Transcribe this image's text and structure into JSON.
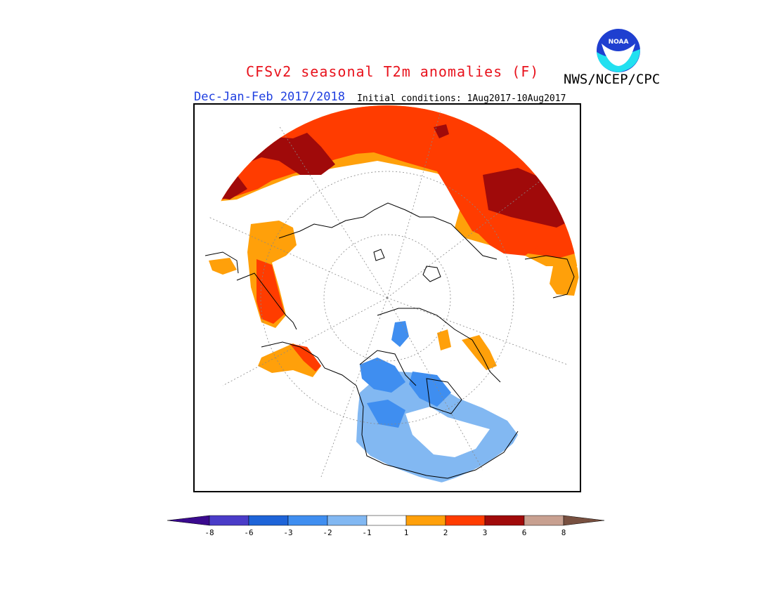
{
  "header": {
    "title": "CFSv2 seasonal T2m anomalies (F)",
    "agency": "NWS/NCEP/CPC",
    "logo_text": "NOAA",
    "season": "Dec-Jan-Feb 2017/2018",
    "initial_conditions": "Initial conditions: 1Aug2017-10Aug2017"
  },
  "map": {
    "projection": "north polar stereographic",
    "variable": "2m temperature anomaly",
    "units": "F"
  },
  "legend": {
    "bins": [
      {
        "range": "< -8",
        "color": "#3a0a8e"
      },
      {
        "range": "-8 to -6",
        "color": "#4a3cc8"
      },
      {
        "range": "-6 to -3",
        "color": "#1e64d8"
      },
      {
        "range": "-3 to -2",
        "color": "#3f8ef0"
      },
      {
        "range": "-2 to -1",
        "color": "#82b8f2"
      },
      {
        "range": "-1 to 1",
        "color": "#ffffff"
      },
      {
        "range": "1 to 2",
        "color": "#ffa00a"
      },
      {
        "range": "2 to 3",
        "color": "#ff3c00"
      },
      {
        "range": "3 to 6",
        "color": "#a00a0a"
      },
      {
        "range": "6 to 8",
        "color": "#c8a090"
      },
      {
        "range": "> 8",
        "color": "#785040"
      }
    ],
    "ticks": [
      "-8",
      "-6",
      "-3",
      "-2",
      "-1",
      "1",
      "2",
      "3",
      "6",
      "8"
    ]
  }
}
